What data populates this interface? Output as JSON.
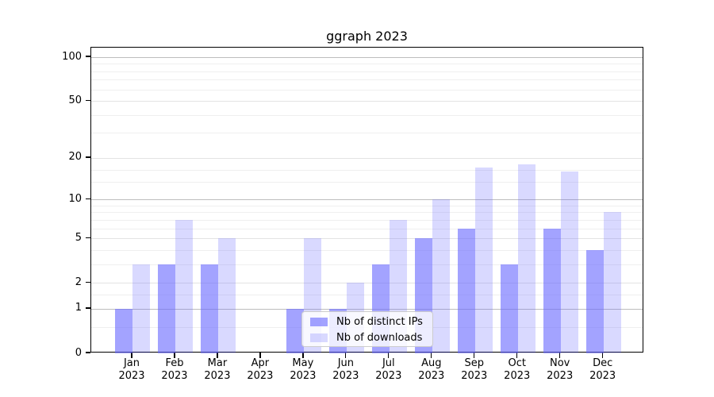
{
  "title": "ggraph 2023",
  "legend": {
    "items": [
      {
        "label": "Nb of distinct IPs"
      },
      {
        "label": "Nb of downloads"
      }
    ]
  },
  "axes": {
    "y_tick_labels": [
      "100",
      "50",
      "20",
      "10",
      "5",
      "2",
      "1",
      "0"
    ],
    "x_year_line": "2023"
  },
  "chart_data": {
    "type": "bar",
    "title": "ggraph 2023",
    "categories": [
      "Jan 2023",
      "Feb 2023",
      "Mar 2023",
      "Apr 2023",
      "May 2023",
      "Jun 2023",
      "Jul 2023",
      "Aug 2023",
      "Sep 2023",
      "Oct 2023",
      "Nov 2023",
      "Dec 2023"
    ],
    "series": [
      {
        "name": "Nb of distinct IPs",
        "color": "rgba(102,102,255,0.6)",
        "values": [
          1,
          3,
          3,
          0,
          1,
          1,
          3,
          5,
          6,
          3,
          6,
          4
        ]
      },
      {
        "name": "Nb of downloads",
        "color": "rgba(102,102,255,0.25)",
        "values": [
          3,
          7,
          5,
          0,
          5,
          2,
          7,
          10,
          17,
          18,
          16,
          8
        ]
      }
    ],
    "xlabel": "",
    "ylabel": "",
    "y_scale": "log1p",
    "ylim": [
      0,
      116
    ],
    "y_ticks": [
      0,
      1,
      2,
      5,
      10,
      20,
      50,
      100
    ],
    "y_major_grid": [
      1,
      10,
      100
    ],
    "y_labeled_grid": [
      2,
      5,
      20,
      50
    ],
    "y_minor_grid": [
      0.5,
      1.5,
      3,
      4,
      6,
      7,
      8,
      9,
      13.5,
      16.5,
      30,
      40,
      60,
      70,
      80,
      90
    ],
    "grid": true,
    "legend_position": "lower center",
    "colors": {
      "bar_base": "#6666ff",
      "axis": "#000000",
      "major_grid": "#bdbdbd",
      "labeled_grid": "#e3e3e3",
      "minor_grid": "#efefef",
      "background": "#ffffff"
    }
  }
}
